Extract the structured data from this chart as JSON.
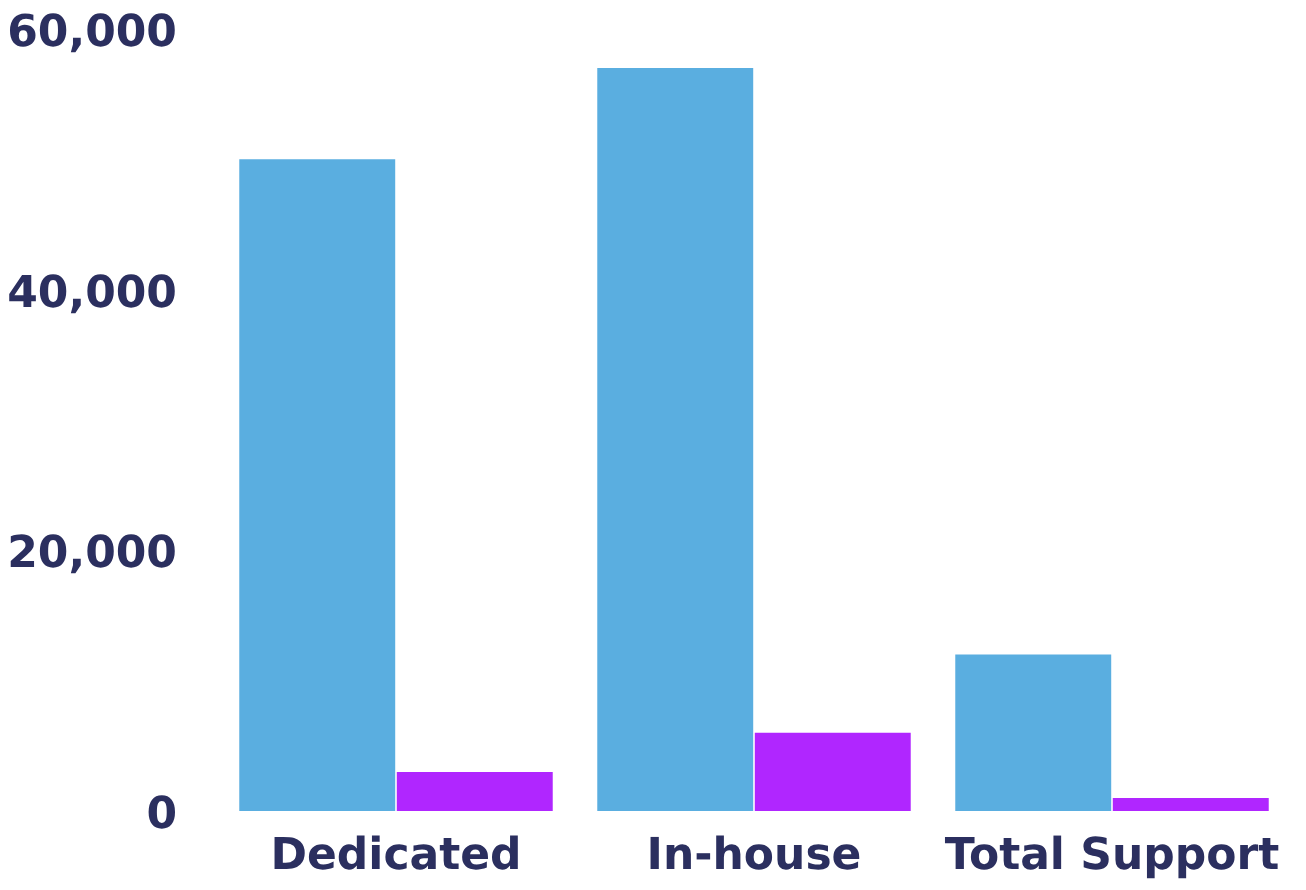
{
  "chart_data": {
    "type": "bar",
    "categories": [
      "Dedicated",
      "In-house",
      "Total Support"
    ],
    "series": [
      {
        "color": "#5aaee0",
        "values": [
          50000,
          57000,
          12000
        ]
      },
      {
        "color": "#b026ff",
        "values": [
          3000,
          6000,
          1000
        ]
      }
    ],
    "ylim": [
      0,
      60000
    ],
    "yticks": [
      {
        "value": 0,
        "label": "0"
      },
      {
        "value": 20000,
        "label": "20,000"
      },
      {
        "value": 40000,
        "label": "40,000"
      },
      {
        "value": 60000,
        "label": "60,000"
      }
    ],
    "grid": false
  }
}
